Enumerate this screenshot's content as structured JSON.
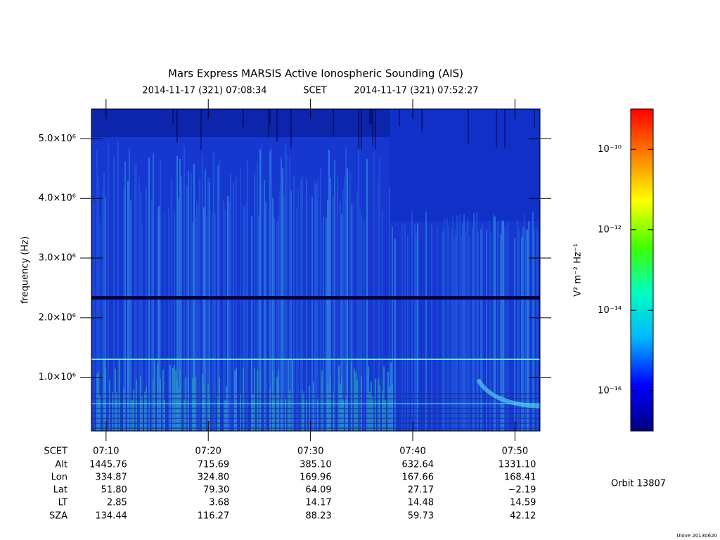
{
  "chart_data": {
    "type": "spectrogram",
    "title": "Mars Express MARSIS Active Ionospheric Sounding (AIS)",
    "subtitle": [
      "2014-11-17 (321) 07:08:34",
      "SCET",
      "2014-11-17 (321) 07:52:27"
    ],
    "ylabel": "frequency (Hz)",
    "ylim": [
      100000,
      5500000
    ],
    "yticks": [
      {
        "value": 1000000,
        "label": "1.0×10⁶"
      },
      {
        "value": 2000000,
        "label": "2.0×10⁶"
      },
      {
        "value": 3000000,
        "label": "3.0×10⁶"
      },
      {
        "value": 4000000,
        "label": "4.0×10⁶"
      },
      {
        "value": 5000000,
        "label": "5.0×10⁶"
      }
    ],
    "xlabel": "SCET",
    "xlim": [
      "07:08:34",
      "07:52:27"
    ],
    "xticks": [
      {
        "value": "07:10:00",
        "label": "07:10"
      },
      {
        "value": "07:20:00",
        "label": "07:20"
      },
      {
        "value": "07:30:00",
        "label": "07:30"
      },
      {
        "value": "07:40:00",
        "label": "07:40"
      },
      {
        "value": "07:50:00",
        "label": "07:50"
      }
    ],
    "ephemeris": [
      {
        "label": "Alt",
        "values": [
          "1445.76",
          "715.69",
          "385.10",
          "632.64",
          "1331.10"
        ]
      },
      {
        "label": "Lon",
        "values": [
          "334.87",
          "324.80",
          "169.96",
          "167.66",
          "168.41"
        ]
      },
      {
        "label": "Lat",
        "values": [
          "51.80",
          "79.30",
          "64.09",
          "27.17",
          "−2.19"
        ]
      },
      {
        "label": "LT",
        "values": [
          "2.85",
          "3.68",
          "14.17",
          "14.48",
          "14.59"
        ]
      },
      {
        "label": "SZA",
        "values": [
          "134.44",
          "116.27",
          "88.23",
          "59.73",
          "42.12"
        ]
      }
    ],
    "colorbar": {
      "label": "V² m⁻² Hz⁻¹",
      "log": true,
      "lim": [
        1e-17,
        1e-09
      ],
      "ticks": [
        {
          "value": 1e-10,
          "label": "10⁻¹⁰"
        },
        {
          "value": 1e-12,
          "label": "10⁻¹²"
        },
        {
          "value": 1e-14,
          "label": "10⁻¹⁴"
        },
        {
          "value": 1e-16,
          "label": "10⁻¹⁶"
        }
      ],
      "colormap": [
        "#000080",
        "#0000ff",
        "#00b4ff",
        "#00ffc0",
        "#40ff00",
        "#ffff00",
        "#ff8000",
        "#ff0000"
      ]
    },
    "orbit": "Orbit 13807",
    "footer": "Ulove 20130620"
  }
}
